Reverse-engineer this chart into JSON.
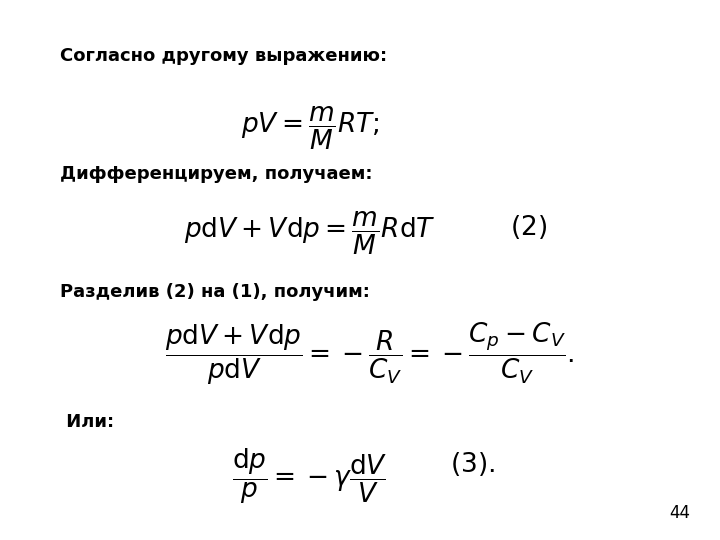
{
  "bg_color": "#ffffff",
  "text_color": "#000000",
  "page_number": "44",
  "label1": "Согласно другому выражению:",
  "label2": "Дифференцируем, получаем:",
  "label3": "Разделив (2) на (1), получим:",
  "label4": " Или:",
  "label_fontsize": 13,
  "formula_fontsize": 19,
  "num_fontsize": 19
}
